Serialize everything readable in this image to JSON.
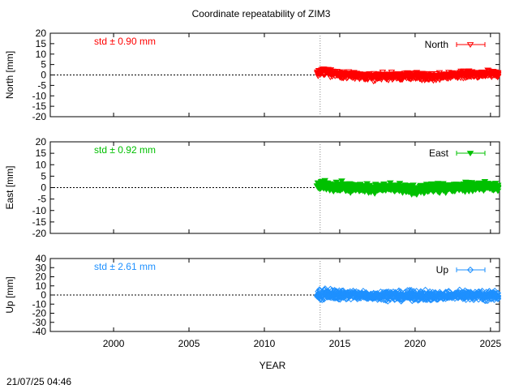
{
  "title": "Coordinate repeatability of ZIM3",
  "footer_timestamp": "21/07/25 04:46",
  "xaxis": {
    "label": "YEAR",
    "range": [
      1995.8,
      2025.6
    ],
    "ticks": [
      2000,
      2005,
      2010,
      2015,
      2020,
      2025
    ]
  },
  "reference_epoch": 2013.7,
  "chart_data": [
    {
      "type": "scatter",
      "name": "North",
      "legend": "North",
      "ylabel": "North [mm]",
      "std_label": "std ± 0.90 mm",
      "color": "#ff0000",
      "marker": "triangle-down-open",
      "ylim": [
        -20,
        20
      ],
      "yticks": [
        -20,
        -15,
        -10,
        -5,
        0,
        5,
        10,
        15,
        20
      ],
      "x_start": 2013.5,
      "x_end": 2025.6,
      "std_mm": 0.9,
      "band": {
        "x": [
          2013.5,
          2014.0,
          2015.0,
          2016.0,
          2017.0,
          2018.0,
          2019.0,
          2020.0,
          2021.0,
          2022.0,
          2023.0,
          2024.0,
          2025.0,
          2025.6
        ],
        "mean": [
          1.0,
          1.5,
          0.5,
          -0.5,
          -1.0,
          -0.5,
          -0.8,
          -0.5,
          -1.0,
          -0.3,
          0.0,
          0.5,
          0.5,
          0.5
        ],
        "spread": [
          2.0,
          2.5,
          2.2,
          2.5,
          2.5,
          2.3,
          2.5,
          2.5,
          2.5,
          2.3,
          2.3,
          2.3,
          2.3,
          2.3
        ]
      }
    },
    {
      "type": "scatter",
      "name": "East",
      "legend": "East",
      "ylabel": "East [mm]",
      "std_label": "std ± 0.92 mm",
      "color": "#00c000",
      "marker": "triangle-down-filled",
      "ylim": [
        -20,
        20
      ],
      "yticks": [
        -20,
        -15,
        -10,
        -5,
        0,
        5,
        10,
        15,
        20
      ],
      "x_start": 2013.5,
      "x_end": 2025.6,
      "std_mm": 0.92,
      "band": {
        "x": [
          2013.5,
          2014.0,
          2015.0,
          2016.0,
          2017.0,
          2018.0,
          2019.0,
          2020.0,
          2021.0,
          2022.0,
          2023.0,
          2024.0,
          2025.0,
          2025.6
        ],
        "mean": [
          0.5,
          1.0,
          0.5,
          0.0,
          -0.5,
          0.0,
          -0.5,
          -1.0,
          -0.5,
          0.0,
          0.3,
          0.5,
          0.3,
          0.3
        ],
        "spread": [
          2.5,
          3.0,
          2.8,
          3.0,
          2.8,
          2.5,
          2.8,
          2.8,
          2.8,
          2.5,
          2.8,
          3.0,
          2.8,
          2.5
        ]
      }
    },
    {
      "type": "scatter",
      "name": "Up",
      "legend": "Up",
      "ylabel": "Up [mm]",
      "std_label": "std ± 2.61 mm",
      "color": "#1e90ff",
      "marker": "diamond-open",
      "ylim": [
        -40,
        40
      ],
      "yticks": [
        -40,
        -30,
        -20,
        -10,
        0,
        10,
        20,
        30,
        40
      ],
      "x_start": 2013.5,
      "x_end": 2025.6,
      "std_mm": 2.61,
      "band": {
        "x": [
          2013.5,
          2014.0,
          2015.0,
          2016.0,
          2017.0,
          2018.0,
          2019.0,
          2020.0,
          2021.0,
          2022.0,
          2023.0,
          2024.0,
          2025.0,
          2025.6
        ],
        "mean": [
          0.0,
          1.0,
          0.5,
          0.0,
          -1.0,
          0.0,
          -1.0,
          -0.5,
          -1.0,
          -0.5,
          0.0,
          0.0,
          -0.5,
          -0.5
        ],
        "spread": [
          7.0,
          8.0,
          7.5,
          7.5,
          7.0,
          7.0,
          7.5,
          7.5,
          7.0,
          7.0,
          7.5,
          7.5,
          7.5,
          7.0
        ]
      }
    }
  ]
}
